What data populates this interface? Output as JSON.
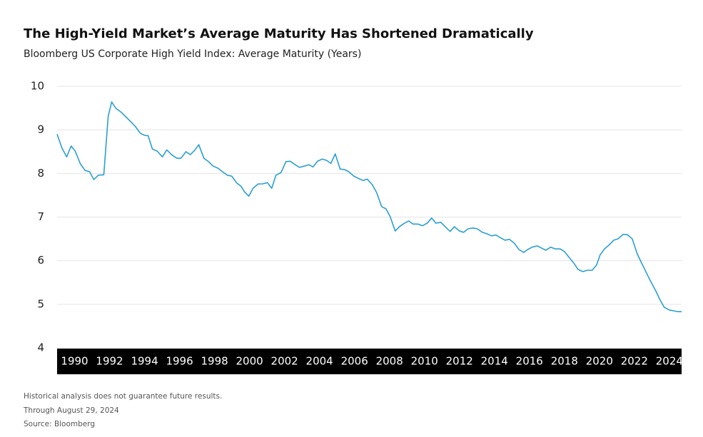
{
  "chart_data": {
    "type": "line",
    "title": "The High-Yield Market’s Average Maturity Has Shortened Dramatically",
    "subtitle": "Bloomberg US Corporate High Yield Index: Average Maturity (Years)",
    "notes": [
      "Historical analysis does not guarantee future results.",
      "Through August 29, 2024",
      "Source: Bloomberg"
    ],
    "color": "#2b9fd1",
    "x": [
      1989.0,
      1989.27,
      1989.55,
      1989.8,
      1990.04,
      1990.33,
      1990.6,
      1990.86,
      1991.1,
      1991.35,
      1991.67,
      1991.92,
      1992.12,
      1992.37,
      1992.65,
      1992.9,
      1993.18,
      1993.47,
      1993.76,
      1994.04,
      1994.2,
      1994.45,
      1994.73,
      1995.02,
      1995.27,
      1995.55,
      1995.84,
      1996.08,
      1996.37,
      1996.61,
      1996.86,
      1997.1,
      1997.39,
      1997.63,
      1997.92,
      1998.2,
      1998.45,
      1998.73,
      1998.98,
      1999.27,
      1999.51,
      1999.71,
      1999.96,
      2000.2,
      2000.49,
      2000.73,
      2001.02,
      2001.27,
      2001.51,
      2001.8,
      2002.08,
      2002.33,
      2002.61,
      2002.86,
      2003.14,
      2003.39,
      2003.63,
      2003.88,
      2004.16,
      2004.41,
      2004.65,
      2004.9,
      2005.18,
      2005.43,
      2005.67,
      2005.96,
      2006.2,
      2006.49,
      2006.73,
      2007.02,
      2007.27,
      2007.55,
      2007.8,
      2008.04,
      2008.33,
      2008.57,
      2008.86,
      2009.1,
      2009.35,
      2009.63,
      2009.88,
      2010.16,
      2010.41,
      2010.65,
      2010.94,
      2011.18,
      2011.47,
      2011.71,
      2012.0,
      2012.24,
      2012.49,
      2012.78,
      2013.02,
      2013.31,
      2013.55,
      2013.84,
      2014.08,
      2014.33,
      2014.61,
      2014.86,
      2015.14,
      2015.39,
      2015.67,
      2015.92,
      2016.16,
      2016.45,
      2016.69,
      2016.94,
      2017.22,
      2017.47,
      2017.76,
      2018.0,
      2018.24,
      2018.53,
      2018.78,
      2019.06,
      2019.31,
      2019.59,
      2019.84,
      2020.04,
      2020.29,
      2020.53,
      2020.82,
      2021.06,
      2021.35,
      2021.59,
      2021.88,
      2022.16,
      2022.41,
      2022.69,
      2022.94,
      2023.22,
      2023.47,
      2023.71,
      2024.0,
      2024.24,
      2024.49,
      2024.7
    ],
    "values": [
      8.9,
      8.59,
      8.38,
      8.63,
      8.51,
      8.22,
      8.07,
      8.04,
      7.86,
      7.96,
      7.97,
      9.31,
      9.64,
      9.49,
      9.41,
      9.31,
      9.2,
      9.08,
      8.92,
      8.87,
      8.87,
      8.56,
      8.51,
      8.38,
      8.54,
      8.43,
      8.35,
      8.35,
      8.5,
      8.43,
      8.53,
      8.66,
      8.35,
      8.28,
      8.17,
      8.12,
      8.04,
      7.96,
      7.94,
      7.78,
      7.71,
      7.58,
      7.48,
      7.66,
      7.76,
      7.76,
      7.79,
      7.66,
      7.96,
      8.02,
      8.27,
      8.28,
      8.2,
      8.14,
      8.17,
      8.2,
      8.15,
      8.28,
      8.33,
      8.3,
      8.23,
      8.45,
      8.1,
      8.09,
      8.04,
      7.94,
      7.89,
      7.84,
      7.87,
      7.74,
      7.56,
      7.24,
      7.19,
      7.01,
      6.68,
      6.78,
      6.86,
      6.91,
      6.84,
      6.84,
      6.8,
      6.86,
      6.98,
      6.86,
      6.88,
      6.78,
      6.67,
      6.78,
      6.68,
      6.65,
      6.73,
      6.75,
      6.73,
      6.65,
      6.62,
      6.57,
      6.59,
      6.53,
      6.47,
      6.49,
      6.4,
      6.26,
      6.19,
      6.26,
      6.31,
      6.34,
      6.29,
      6.24,
      6.31,
      6.27,
      6.27,
      6.21,
      6.09,
      5.95,
      5.8,
      5.75,
      5.78,
      5.78,
      5.9,
      6.13,
      6.27,
      6.35,
      6.47,
      6.5,
      6.6,
      6.6,
      6.5,
      6.16,
      5.95,
      5.72,
      5.52,
      5.31,
      5.1,
      4.93,
      4.87,
      4.85,
      4.83,
      4.83
    ],
    "xlim": [
      1989,
      2024.7
    ],
    "xticks": [
      1990,
      1992,
      1994,
      1996,
      1998,
      2000,
      2002,
      2004,
      2006,
      2008,
      2010,
      2012,
      2014,
      2016,
      2018,
      2020,
      2022,
      2024
    ],
    "ylim": [
      4,
      10
    ],
    "yticks": [
      4,
      5,
      6,
      7,
      8,
      9,
      10
    ],
    "grid": true
  }
}
